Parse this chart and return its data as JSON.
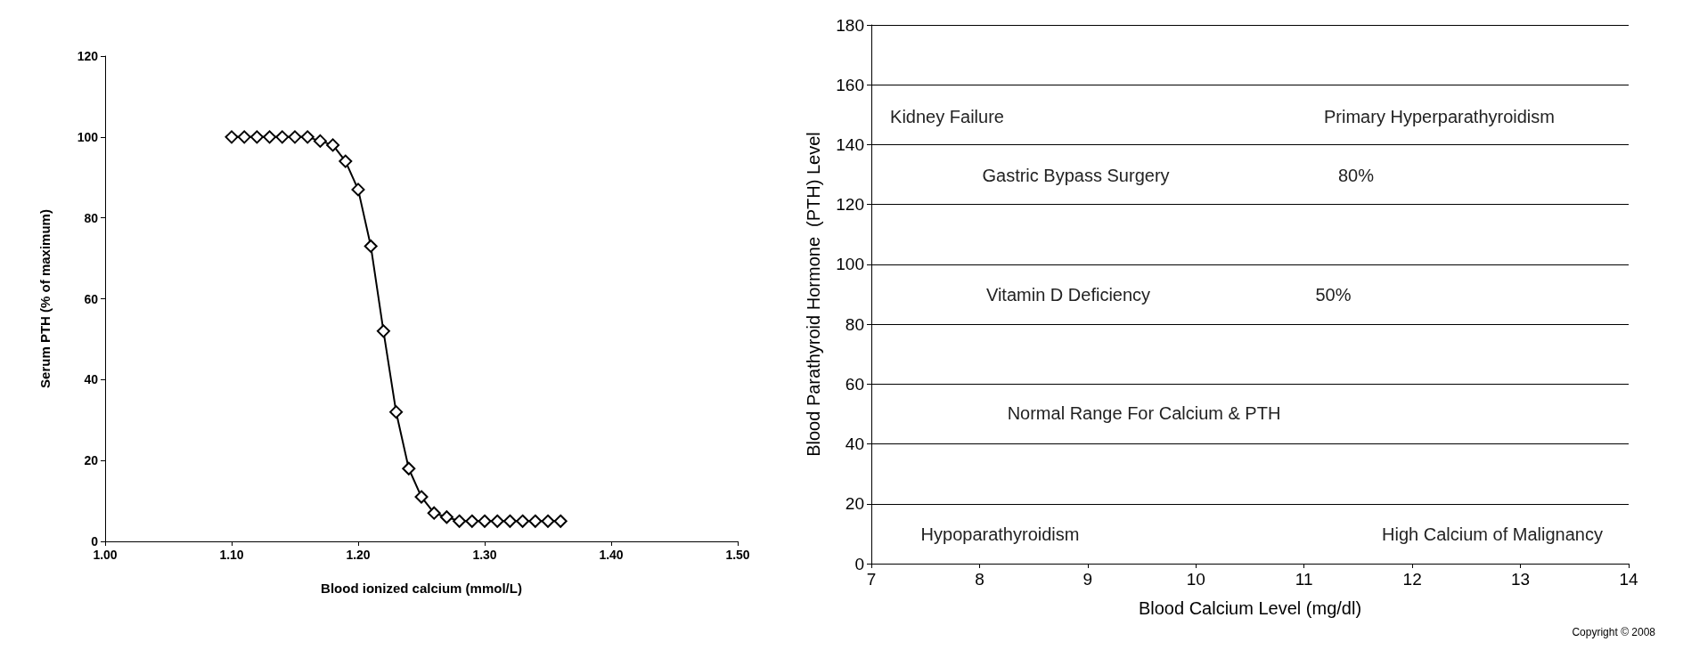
{
  "chart_data": [
    {
      "type": "line",
      "xlabel": "Blood ionized calcium (mmol/L)",
      "ylabel": "Serum PTH (% of maximum)",
      "marker": "diamond",
      "line_style": "solid",
      "grid": false,
      "x": [
        1.1,
        1.11,
        1.12,
        1.13,
        1.14,
        1.15,
        1.16,
        1.17,
        1.18,
        1.19,
        1.2,
        1.21,
        1.22,
        1.23,
        1.24,
        1.25,
        1.26,
        1.27,
        1.28,
        1.29,
        1.3,
        1.31,
        1.32,
        1.33,
        1.34,
        1.35,
        1.36
      ],
      "series": [
        {
          "color": "#000000",
          "values": [
            100,
            100,
            100,
            100,
            100,
            100,
            100,
            99,
            98,
            94,
            87,
            73,
            52,
            32,
            18,
            11,
            7,
            6,
            5,
            5,
            5,
            5,
            5,
            5,
            5,
            5,
            5
          ]
        }
      ],
      "xlim": [
        1.0,
        1.5
      ],
      "xticks": [
        {
          "value": 1.0,
          "label": "1.00"
        },
        {
          "value": 1.1,
          "label": "1.10"
        },
        {
          "value": 1.2,
          "label": "1.20"
        },
        {
          "value": 1.3,
          "label": "1.30"
        },
        {
          "value": 1.4,
          "label": "1.40"
        },
        {
          "value": 1.5,
          "label": "1.50"
        }
      ],
      "ylim": [
        0,
        120
      ],
      "yticks": [
        0,
        20,
        40,
        60,
        80,
        100,
        120
      ]
    },
    {
      "type": "scatter",
      "xlabel": "Blood Calcium Level (mg/dl)",
      "ylabel": "Blood Parathyroid Hormone  (PTH) Level",
      "grid": "y",
      "xlim": [
        7,
        14
      ],
      "xticks": [
        7,
        8,
        9,
        10,
        11,
        12,
        13,
        14
      ],
      "ylim": [
        0,
        180
      ],
      "yticks": [
        0,
        20,
        40,
        60,
        80,
        100,
        120,
        140,
        160,
        180
      ],
      "annotations": [
        "Kidney Failure",
        "Gastric Bypass Surgery",
        "Primary Hyperparathyroidism",
        "80%",
        "50%",
        "Vitamin D Deficiency",
        "Normal Range For Calcium & PTH",
        "Hypoparathyroidism",
        "High Calcium of Malignancy",
        "Copyright © 2008"
      ]
    }
  ]
}
